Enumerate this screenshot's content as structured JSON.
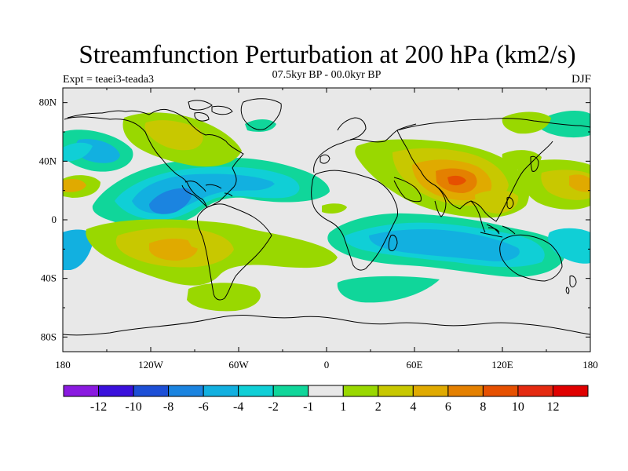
{
  "header": {
    "title": "Streamfunction Perturbation at 200 hPa (km2/s)",
    "experiment": "Expt = teaei3-teada3",
    "period": "07.5kyr BP - 00.0kyr BP",
    "season": "DJF"
  },
  "axes": {
    "lat_labels": [
      "80N",
      "40N",
      "0",
      "40S",
      "80S"
    ],
    "lat_values": [
      80,
      40,
      0,
      -40,
      -80
    ],
    "lon_labels": [
      "180",
      "120W",
      "60W",
      "0",
      "60E",
      "120E",
      "180"
    ],
    "lon_values": [
      -180,
      -120,
      -60,
      0,
      60,
      120,
      180
    ],
    "lat_range": [
      -90,
      90
    ],
    "lon_range": [
      -180,
      180
    ]
  },
  "colorbar": {
    "labels": [
      "-12",
      "-10",
      "-8",
      "-6",
      "-4",
      "-2",
      "-1",
      "1",
      "2",
      "4",
      "6",
      "8",
      "10",
      "12"
    ],
    "colors": [
      "#8a1ae0",
      "#3a10dc",
      "#1d4fd6",
      "#1b84e0",
      "#12b0e0",
      "#10cfd6",
      "#10d69a",
      "#e8e8e8",
      "#99d800",
      "#c8c800",
      "#e0aa00",
      "#e48000",
      "#e65000",
      "#e42a10",
      "#e00000"
    ]
  },
  "chart_data": {
    "type": "heatmap",
    "levels": [
      -12,
      -10,
      -8,
      -6,
      -4,
      -2,
      -1,
      1,
      2,
      4,
      6,
      8,
      10,
      12
    ],
    "features": [
      {
        "lon": -155,
        "lat": 33,
        "value": -3
      },
      {
        "lon": -105,
        "lat": 12,
        "value": -5
      },
      {
        "lon": -55,
        "lat": 18,
        "value": -3
      },
      {
        "lon": -82,
        "lat": 62,
        "value": 2
      },
      {
        "lon": -30,
        "lat": 65,
        "value": -1.5
      },
      {
        "lon": -175,
        "lat": 20,
        "value": 3
      },
      {
        "lon": -100,
        "lat": -20,
        "value": 5
      },
      {
        "lon": -55,
        "lat": -10,
        "value": 3
      },
      {
        "lon": -75,
        "lat": -55,
        "value": 2
      },
      {
        "lon": 85,
        "lat": 28,
        "value": 6.5
      },
      {
        "lon": 125,
        "lat": 17,
        "value": 3
      },
      {
        "lon": 160,
        "lat": 25,
        "value": 3
      },
      {
        "lon": 60,
        "lat": -18,
        "value": -3
      },
      {
        "lon": 155,
        "lat": -18,
        "value": -2.5
      }
    ]
  }
}
